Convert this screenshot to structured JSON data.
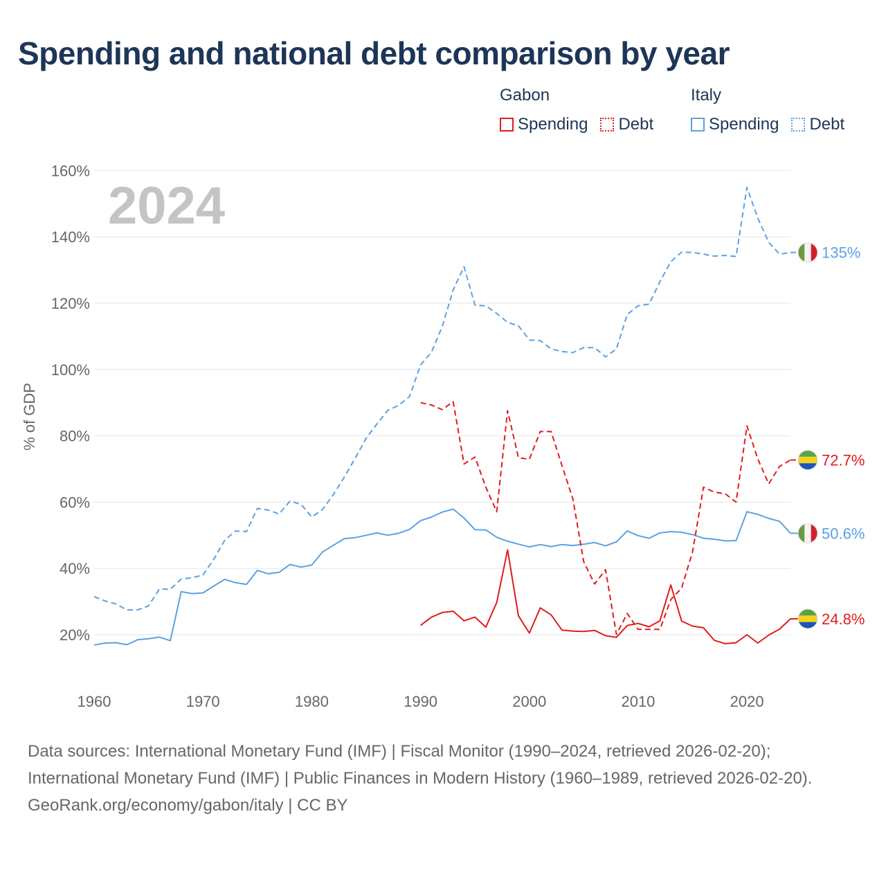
{
  "title": "Spending and national debt comparison by year",
  "legend": {
    "groups": [
      {
        "name": "Gabon",
        "color": "#e31a1c",
        "items": [
          {
            "label": "Spending",
            "style": "solid"
          },
          {
            "label": "Debt",
            "style": "dotted"
          }
        ]
      },
      {
        "name": "Italy",
        "color": "#5aa1e3",
        "items": [
          {
            "label": "Spending",
            "style": "solid"
          },
          {
            "label": "Debt",
            "style": "dotted"
          }
        ]
      }
    ]
  },
  "chart_data": {
    "type": "line",
    "year_watermark": "2024",
    "ylabel": "% of GDP",
    "xlabel": "",
    "xlim": [
      1960,
      2024
    ],
    "ylim": [
      10,
      160
    ],
    "x_ticks": [
      1960,
      1970,
      1980,
      1990,
      2000,
      2010,
      2020
    ],
    "y_ticks": [
      20,
      40,
      60,
      80,
      100,
      120,
      140,
      160
    ],
    "y_tick_labels": [
      "20%",
      "40%",
      "60%",
      "80%",
      "100%",
      "120%",
      "140%",
      "160%"
    ],
    "grid": "horizontal",
    "series": [
      {
        "name": "Italy Debt",
        "country": "Italy",
        "metric": "Debt",
        "color": "#5aa1e3",
        "dashed": true,
        "end_label": "135%",
        "flag": "italy",
        "x": [
          1960,
          1961,
          1962,
          1963,
          1964,
          1965,
          1966,
          1967,
          1968,
          1969,
          1970,
          1971,
          1972,
          1973,
          1974,
          1975,
          1976,
          1977,
          1978,
          1979,
          1980,
          1981,
          1982,
          1983,
          1984,
          1985,
          1986,
          1987,
          1988,
          1989,
          1990,
          1991,
          1992,
          1993,
          1994,
          1995,
          1996,
          1997,
          1998,
          1999,
          2000,
          2001,
          2002,
          2003,
          2004,
          2005,
          2006,
          2007,
          2008,
          2009,
          2010,
          2011,
          2012,
          2013,
          2014,
          2015,
          2016,
          2017,
          2018,
          2019,
          2020,
          2021,
          2022,
          2023,
          2024
        ],
        "values": [
          31.5,
          30.2,
          29.3,
          27.5,
          27.5,
          28.7,
          33.8,
          33.7,
          36.8,
          37.2,
          38,
          42.8,
          48.5,
          51.3,
          51.1,
          58.1,
          57.6,
          56.4,
          60.3,
          59.4,
          55.5,
          57.8,
          62.3,
          67.6,
          73.3,
          79.3,
          83.6,
          87.7,
          89.2,
          91.9,
          101.4,
          105.2,
          113,
          124,
          131,
          119.4,
          119.2,
          116.9,
          114.2,
          113.2,
          108.9,
          108.7,
          106.2,
          105.4,
          105.1,
          106.6,
          106.6,
          103.8,
          106.2,
          116.6,
          119.2,
          119.7,
          126.5,
          132.5,
          135.4,
          135.3,
          134.8,
          134.2,
          134.4,
          134.1,
          154.9,
          145.7,
          138.3,
          134.8,
          135.3
        ]
      },
      {
        "name": "Italy Spending",
        "country": "Italy",
        "metric": "Spending",
        "color": "#5aa1e3",
        "dashed": false,
        "end_label": "50.6%",
        "flag": "italy",
        "x": [
          1960,
          1961,
          1962,
          1963,
          1964,
          1965,
          1966,
          1967,
          1968,
          1969,
          1970,
          1971,
          1972,
          1973,
          1974,
          1975,
          1976,
          1977,
          1978,
          1979,
          1980,
          1981,
          1982,
          1983,
          1984,
          1985,
          1986,
          1987,
          1988,
          1989,
          1990,
          1991,
          1992,
          1993,
          1994,
          1995,
          1996,
          1997,
          1998,
          1999,
          2000,
          2001,
          2002,
          2003,
          2004,
          2005,
          2006,
          2007,
          2008,
          2009,
          2010,
          2011,
          2012,
          2013,
          2014,
          2015,
          2016,
          2017,
          2018,
          2019,
          2020,
          2021,
          2022,
          2023,
          2024
        ],
        "values": [
          16.9,
          17.5,
          17.6,
          17,
          18.5,
          18.8,
          19.3,
          18.2,
          33,
          32.4,
          32.6,
          34.7,
          36.7,
          35.7,
          35.2,
          39.4,
          38.4,
          38.8,
          41.2,
          40.4,
          41,
          45,
          47,
          49,
          49.3,
          50,
          50.7,
          50,
          50.6,
          51.8,
          54.4,
          55.5,
          57,
          57.9,
          55.2,
          51.7,
          51.6,
          49.4,
          48.2,
          47.3,
          46.5,
          47.2,
          46.6,
          47.2,
          46.9,
          47.3,
          47.8,
          46.8,
          48,
          51.3,
          49.9,
          49.1,
          50.7,
          51.1,
          50.9,
          50.2,
          49.1,
          48.8,
          48.3,
          48.4,
          57.1,
          56.3,
          55.1,
          54.2,
          50.6
        ]
      },
      {
        "name": "Gabon Debt",
        "country": "Gabon",
        "metric": "Debt",
        "color": "#e31a1c",
        "dashed": true,
        "end_label": "72.7%",
        "flag": "gabon",
        "x": [
          1990,
          1991,
          1992,
          1993,
          1994,
          1995,
          1996,
          1997,
          1998,
          1999,
          2000,
          2001,
          2002,
          2003,
          2004,
          2005,
          2006,
          2007,
          2008,
          2009,
          2010,
          2011,
          2012,
          2013,
          2014,
          2015,
          2016,
          2017,
          2018,
          2019,
          2020,
          2021,
          2022,
          2023,
          2024
        ],
        "values": [
          90,
          89.3,
          87.9,
          90.3,
          71.5,
          73.6,
          64.5,
          57.1,
          87.6,
          73.4,
          72.9,
          81.3,
          81.3,
          71,
          61,
          42,
          35.3,
          39.6,
          20.1,
          26.4,
          21.6,
          21.6,
          21.6,
          30.6,
          34.1,
          45,
          64.5,
          63,
          62.5,
          60,
          83,
          73,
          65.5,
          70.8,
          72.7
        ]
      },
      {
        "name": "Gabon Spending",
        "country": "Gabon",
        "metric": "Spending",
        "color": "#e31a1c",
        "dashed": false,
        "end_label": "24.8%",
        "flag": "gabon",
        "x": [
          1990,
          1991,
          1992,
          1993,
          1994,
          1995,
          1996,
          1997,
          1998,
          1999,
          2000,
          2001,
          2002,
          2003,
          2004,
          2005,
          2006,
          2007,
          2008,
          2009,
          2010,
          2011,
          2012,
          2013,
          2014,
          2015,
          2016,
          2017,
          2018,
          2019,
          2020,
          2021,
          2022,
          2023,
          2024
        ],
        "values": [
          22.8,
          25.3,
          26.7,
          27.1,
          24.2,
          25.3,
          22.3,
          29.7,
          45.6,
          25.7,
          20.5,
          28.1,
          26,
          21.4,
          21.1,
          21,
          21.3,
          19.7,
          19.2,
          22.8,
          23.4,
          22.4,
          24.2,
          35,
          24.1,
          22.6,
          22.1,
          18.3,
          17.3,
          17.6,
          20,
          17.5,
          19.9,
          21.7,
          24.8
        ]
      }
    ]
  },
  "footer": {
    "sources": "Data sources: International Monetary Fund (IMF) | Fiscal Monitor (1990–2024, retrieved 2026-02-20); International Monetary Fund (IMF) | Public Finances in Modern History (1960–1989, retrieved 2026-02-20).",
    "credit": "GeoRank.org/economy/gabon/italy | CC BY"
  }
}
